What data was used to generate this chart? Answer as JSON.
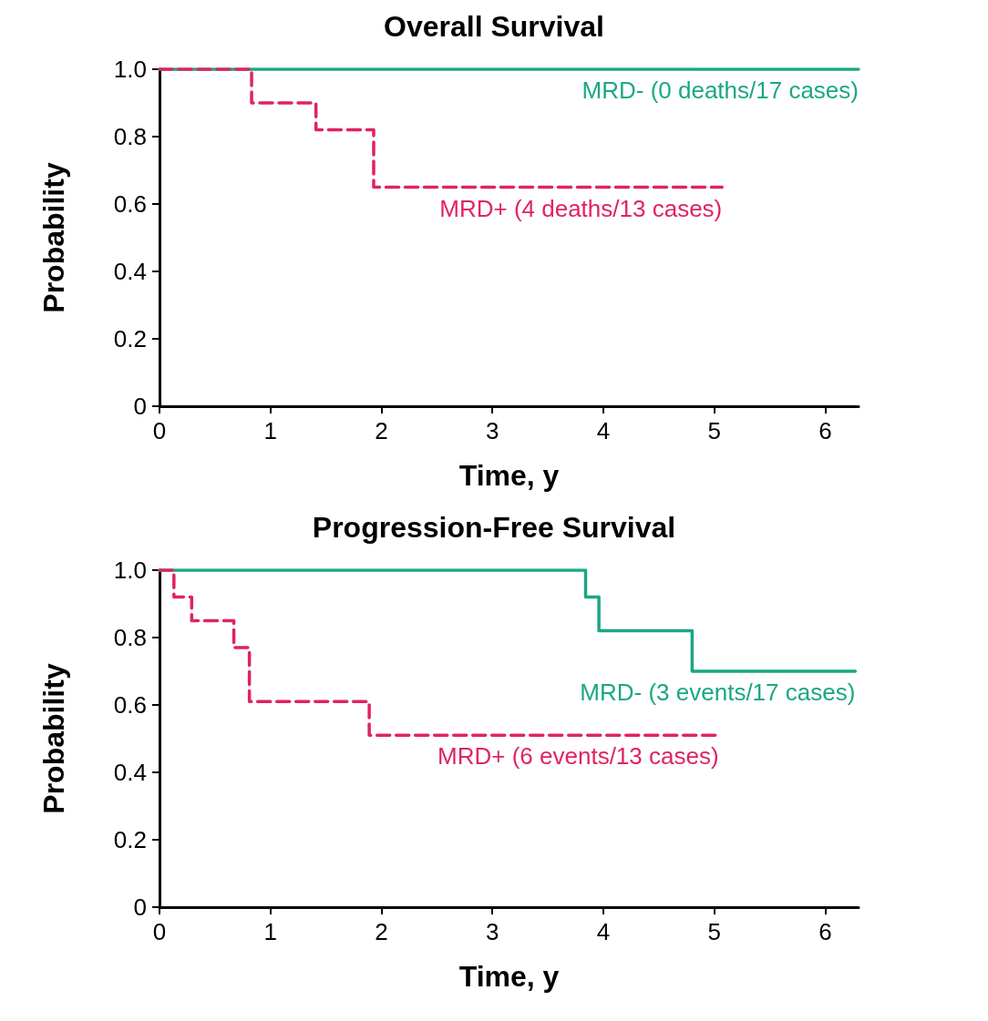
{
  "chart_data": [
    {
      "type": "step",
      "title": "Overall Survival",
      "xlabel": "Time, y",
      "ylabel": "Probability",
      "xlim": [
        0,
        6.3
      ],
      "xticks": [
        0,
        1,
        2,
        3,
        4,
        5,
        6
      ],
      "ylim": [
        0,
        1
      ],
      "yticks": [
        0,
        0.2,
        0.4,
        0.6,
        0.8,
        {
          "value": 1,
          "label": "1.0"
        }
      ],
      "grid": false,
      "marker": "none",
      "series": [
        {
          "name": "MRD- (0 deaths/17 cases)",
          "color": "#1aa784",
          "line_style": "solid",
          "x": [
            0,
            6.3
          ],
          "values": [
            1,
            1
          ]
        },
        {
          "name": "MRD+ (4 deaths/13 cases)",
          "color": "#e0245e",
          "line_style": "dashed",
          "x": [
            0,
            0.83,
            1.41,
            1.93,
            5.07
          ],
          "values": [
            1,
            0.9,
            0.82,
            0.65,
            0.65
          ]
        }
      ]
    },
    {
      "type": "step",
      "title": "Progression-Free Survival",
      "xlabel": "Time, y",
      "ylabel": "Probability",
      "xlim": [
        0,
        6.3
      ],
      "xticks": [
        0,
        1,
        2,
        3,
        4,
        5,
        6
      ],
      "ylim": [
        0,
        1
      ],
      "yticks": [
        0,
        0.2,
        0.4,
        0.6,
        0.8,
        {
          "value": 1,
          "label": "1.0"
        }
      ],
      "grid": false,
      "marker": "none",
      "series": [
        {
          "name": "MRD- (3 events/17 cases)",
          "color": "#1aa784",
          "line_style": "solid",
          "x": [
            0,
            3.84,
            3.96,
            4.8,
            6.27
          ],
          "values": [
            1,
            0.92,
            0.82,
            0.7,
            0.7
          ]
        },
        {
          "name": "MRD+ (6 events/13 cases)",
          "color": "#e0245e",
          "line_style": "dashed",
          "x": [
            0,
            0.13,
            0.29,
            0.67,
            0.81,
            1.89,
            5.04
          ],
          "values": [
            1,
            0.92,
            0.85,
            0.77,
            0.61,
            0.51,
            0.51
          ]
        }
      ]
    }
  ]
}
